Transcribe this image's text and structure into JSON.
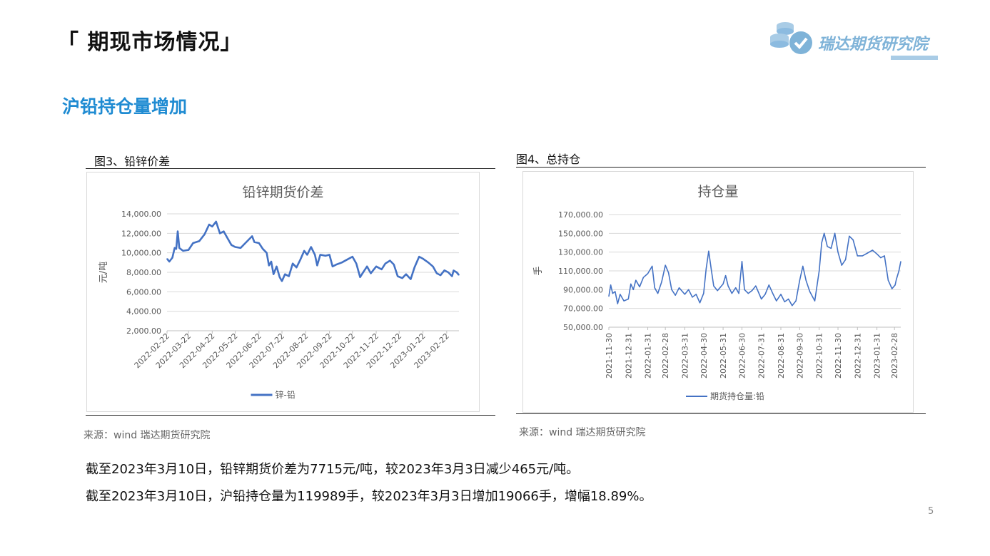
{
  "header": {
    "title": "「 期现市场情况」",
    "logo_text": "瑞达期货研究院",
    "logo_icon": "coins-check-icon",
    "section": "沪铅持仓量增加"
  },
  "figures": [
    {
      "caption": "图3、铅锌价差",
      "source": "来源：wind   瑞达期货研究院"
    },
    {
      "caption": "图4、总持仓",
      "source": "来源：wind   瑞达期货研究院"
    }
  ],
  "summary": [
    "截至2023年3月10日，铅锌期货价差为7715元/吨，较2023年3月3日减少465元/吨。",
    "截至2023年3月10日，沪铅持仓量为119989手，较2023年3月3日增加19066手，增幅18.89%。"
  ],
  "page_number": "5",
  "colors": {
    "line": "#4472c4",
    "section": "#1f8bd2",
    "grid": "#d9d9d9",
    "logo": "#7fb3d8"
  },
  "chart_data": [
    {
      "type": "line",
      "title": "铅锌期货价差",
      "xlabel": "",
      "ylabel": "元/吨",
      "ylim": [
        2000,
        14000
      ],
      "yticks": [
        "2,000.00",
        "4,000.00",
        "6,000.00",
        "8,000.00",
        "10,000.00",
        "12,000.00",
        "14,000.00"
      ],
      "xticks": [
        "2022-02-22",
        "2022-03-22",
        "2022-04-22",
        "2022-05-22",
        "2022-06-22",
        "2022-07-22",
        "2022-08-22",
        "2022-09-22",
        "2022-10-22",
        "2022-11-22",
        "2022-12-22",
        "2023-01-22",
        "2023-02-22"
      ],
      "xrange": [
        "2022-02-22",
        "2023-03-10"
      ],
      "grid": true,
      "legend_position": "bottom",
      "series": [
        {
          "name": "锌-铅",
          "points": [
            [
              "2022-02-22",
              9400
            ],
            [
              "2022-02-25",
              9100
            ],
            [
              "2022-03-01",
              9500
            ],
            [
              "2022-03-04",
              10500
            ],
            [
              "2022-03-06",
              10400
            ],
            [
              "2022-03-08",
              12200
            ],
            [
              "2022-03-10",
              10500
            ],
            [
              "2022-03-15",
              10200
            ],
            [
              "2022-03-22",
              10300
            ],
            [
              "2022-03-28",
              11000
            ],
            [
              "2022-04-05",
              11200
            ],
            [
              "2022-04-12",
              11900
            ],
            [
              "2022-04-18",
              12900
            ],
            [
              "2022-04-22",
              12700
            ],
            [
              "2022-04-27",
              13200
            ],
            [
              "2022-05-02",
              12000
            ],
            [
              "2022-05-07",
              12200
            ],
            [
              "2022-05-12",
              11500
            ],
            [
              "2022-05-17",
              10800
            ],
            [
              "2022-05-22",
              10600
            ],
            [
              "2022-05-29",
              10500
            ],
            [
              "2022-06-03",
              10900
            ],
            [
              "2022-06-08",
              11300
            ],
            [
              "2022-06-13",
              11700
            ],
            [
              "2022-06-16",
              11100
            ],
            [
              "2022-06-22",
              11000
            ],
            [
              "2022-06-27",
              10400
            ],
            [
              "2022-07-02",
              10000
            ],
            [
              "2022-07-05",
              8700
            ],
            [
              "2022-07-08",
              9100
            ],
            [
              "2022-07-11",
              7800
            ],
            [
              "2022-07-15",
              8600
            ],
            [
              "2022-07-19",
              7500
            ],
            [
              "2022-07-22",
              7100
            ],
            [
              "2022-07-26",
              7800
            ],
            [
              "2022-07-31",
              7600
            ],
            [
              "2022-08-05",
              8900
            ],
            [
              "2022-08-10",
              8500
            ],
            [
              "2022-08-15",
              9300
            ],
            [
              "2022-08-20",
              10200
            ],
            [
              "2022-08-24",
              9800
            ],
            [
              "2022-08-29",
              10600
            ],
            [
              "2022-09-03",
              9800
            ],
            [
              "2022-09-06",
              8700
            ],
            [
              "2022-09-10",
              9800
            ],
            [
              "2022-09-17",
              9700
            ],
            [
              "2022-09-22",
              9800
            ],
            [
              "2022-09-26",
              8600
            ],
            [
              "2022-10-01",
              8800
            ],
            [
              "2022-10-08",
              9000
            ],
            [
              "2022-10-15",
              9300
            ],
            [
              "2022-10-22",
              9600
            ],
            [
              "2022-10-27",
              8900
            ],
            [
              "2022-11-01",
              7500
            ],
            [
              "2022-11-05",
              8000
            ],
            [
              "2022-11-10",
              8600
            ],
            [
              "2022-11-15",
              7900
            ],
            [
              "2022-11-22",
              8600
            ],
            [
              "2022-11-29",
              8300
            ],
            [
              "2022-12-04",
              8900
            ],
            [
              "2022-12-10",
              9200
            ],
            [
              "2022-12-15",
              8800
            ],
            [
              "2022-12-20",
              7600
            ],
            [
              "2022-12-26",
              7400
            ],
            [
              "2022-12-31",
              7800
            ],
            [
              "2023-01-06",
              7300
            ],
            [
              "2023-01-11",
              8500
            ],
            [
              "2023-01-17",
              9600
            ],
            [
              "2023-01-22",
              9400
            ],
            [
              "2023-01-29",
              9000
            ],
            [
              "2023-02-04",
              8600
            ],
            [
              "2023-02-09",
              7900
            ],
            [
              "2023-02-14",
              7700
            ],
            [
              "2023-02-19",
              8200
            ],
            [
              "2023-02-24",
              8000
            ],
            [
              "2023-03-01",
              7600
            ],
            [
              "2023-03-03",
              8180
            ],
            [
              "2023-03-07",
              8000
            ],
            [
              "2023-03-10",
              7715
            ]
          ]
        }
      ]
    },
    {
      "type": "line",
      "title": "持仓量",
      "xlabel": "",
      "ylabel": "手",
      "ylim": [
        50000,
        170000
      ],
      "yticks": [
        "50,000.00",
        "70,000.00",
        "90,000.00",
        "110,000.00",
        "130,000.00",
        "150,000.00",
        "170,000.00"
      ],
      "xticks": [
        "2021-11-30",
        "2021-12-31",
        "2022-01-31",
        "2022-02-28",
        "2022-03-31",
        "2022-04-30",
        "2022-05-31",
        "2022-06-30",
        "2022-07-31",
        "2022-08-31",
        "2022-09-30",
        "2022-10-31",
        "2022-11-30",
        "2022-12-31",
        "2023-01-31",
        "2023-02-28"
      ],
      "xrange": [
        "2021-11-30",
        "2023-03-10"
      ],
      "grid": true,
      "legend_position": "bottom",
      "series": [
        {
          "name": "期货持仓量:铅",
          "points": [
            [
              "2021-11-30",
              83000
            ],
            [
              "2021-12-03",
              95000
            ],
            [
              "2021-12-06",
              86000
            ],
            [
              "2021-12-10",
              88000
            ],
            [
              "2021-12-14",
              75000
            ],
            [
              "2021-12-18",
              85000
            ],
            [
              "2021-12-24",
              78000
            ],
            [
              "2021-12-31",
              80000
            ],
            [
              "2022-01-04",
              96000
            ],
            [
              "2022-01-08",
              90000
            ],
            [
              "2022-01-12",
              100000
            ],
            [
              "2022-01-18",
              93000
            ],
            [
              "2022-01-24",
              103000
            ],
            [
              "2022-01-31",
              107000
            ],
            [
              "2022-02-07",
              115000
            ],
            [
              "2022-02-11",
              92000
            ],
            [
              "2022-02-16",
              86000
            ],
            [
              "2022-02-22",
              98000
            ],
            [
              "2022-02-28",
              116000
            ],
            [
              "2022-03-05",
              108000
            ],
            [
              "2022-03-10",
              90000
            ],
            [
              "2022-03-16",
              84000
            ],
            [
              "2022-03-22",
              92000
            ],
            [
              "2022-03-31",
              85000
            ],
            [
              "2022-04-06",
              90000
            ],
            [
              "2022-04-12",
              82000
            ],
            [
              "2022-04-18",
              85000
            ],
            [
              "2022-04-24",
              76000
            ],
            [
              "2022-04-30",
              86000
            ],
            [
              "2022-05-04",
              112000
            ],
            [
              "2022-05-08",
              131000
            ],
            [
              "2022-05-12",
              112000
            ],
            [
              "2022-05-16",
              94000
            ],
            [
              "2022-05-22",
              89000
            ],
            [
              "2022-05-31",
              96000
            ],
            [
              "2022-06-04",
              105000
            ],
            [
              "2022-06-08",
              94000
            ],
            [
              "2022-06-14",
              86000
            ],
            [
              "2022-06-20",
              92000
            ],
            [
              "2022-06-25",
              86000
            ],
            [
              "2022-06-30",
              120000
            ],
            [
              "2022-07-04",
              90000
            ],
            [
              "2022-07-10",
              86000
            ],
            [
              "2022-07-16",
              89000
            ],
            [
              "2022-07-22",
              94000
            ],
            [
              "2022-07-31",
              80000
            ],
            [
              "2022-08-06",
              85000
            ],
            [
              "2022-08-12",
              95000
            ],
            [
              "2022-08-18",
              86000
            ],
            [
              "2022-08-24",
              78000
            ],
            [
              "2022-08-31",
              85000
            ],
            [
              "2022-09-06",
              77000
            ],
            [
              "2022-09-12",
              80000
            ],
            [
              "2022-09-18",
              73000
            ],
            [
              "2022-09-24",
              78000
            ],
            [
              "2022-09-30",
              100000
            ],
            [
              "2022-10-05",
              115000
            ],
            [
              "2022-10-10",
              100000
            ],
            [
              "2022-10-16",
              88000
            ],
            [
              "2022-10-24",
              78000
            ],
            [
              "2022-10-31",
              110000
            ],
            [
              "2022-11-04",
              140000
            ],
            [
              "2022-11-08",
              150000
            ],
            [
              "2022-11-13",
              136000
            ],
            [
              "2022-11-19",
              134000
            ],
            [
              "2022-11-25",
              150000
            ],
            [
              "2022-11-30",
              130000
            ],
            [
              "2022-12-06",
              116000
            ],
            [
              "2022-12-12",
              122000
            ],
            [
              "2022-12-18",
              147000
            ],
            [
              "2022-12-24",
              143000
            ],
            [
              "2022-12-31",
              126000
            ],
            [
              "2023-01-08",
              126000
            ],
            [
              "2023-01-16",
              129000
            ],
            [
              "2023-01-24",
              132000
            ],
            [
              "2023-01-31",
              128000
            ],
            [
              "2023-02-06",
              124000
            ],
            [
              "2023-02-12",
              126000
            ],
            [
              "2023-02-18",
              100000
            ],
            [
              "2023-02-24",
              91000
            ],
            [
              "2023-03-01",
              95000
            ],
            [
              "2023-03-03",
              100923
            ],
            [
              "2023-03-07",
              110000
            ],
            [
              "2023-03-10",
              119989
            ]
          ]
        }
      ]
    }
  ]
}
